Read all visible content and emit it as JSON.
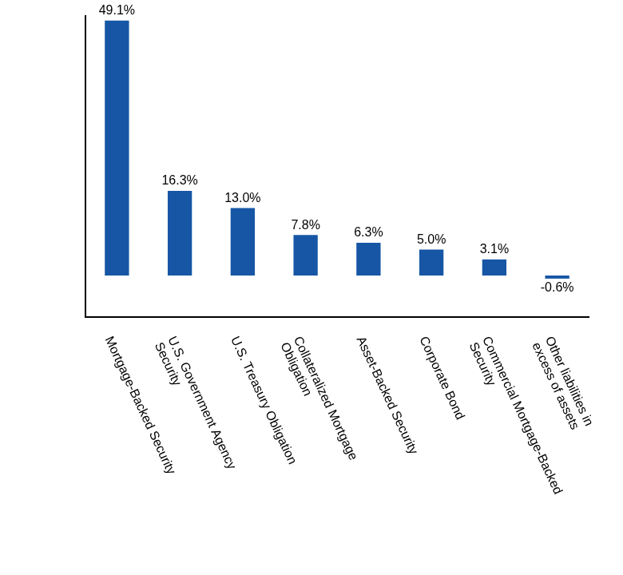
{
  "chart_data": {
    "type": "bar",
    "categories": [
      "Mortgage-Backed Security",
      "U.S. Government Agency Security",
      "U.S. Treasury Obligation",
      "Collateralized Mortgage Obligation",
      "Asset-Backed Security",
      "Corporate Bond",
      "Commercial Mortgage-Backed Security",
      "Other liabilities in excess of assets"
    ],
    "values": [
      49.1,
      16.3,
      13.0,
      7.8,
      6.3,
      5.0,
      3.1,
      -0.6
    ],
    "value_labels": [
      "49.1%",
      "16.3%",
      "13.0%",
      "7.8%",
      "6.3%",
      "5.0%",
      "3.1%",
      "-0.6%"
    ],
    "color": "#1656a5",
    "ylim": [
      -8,
      50
    ],
    "grid": false,
    "data_labels": true,
    "tick_labels": "x"
  }
}
